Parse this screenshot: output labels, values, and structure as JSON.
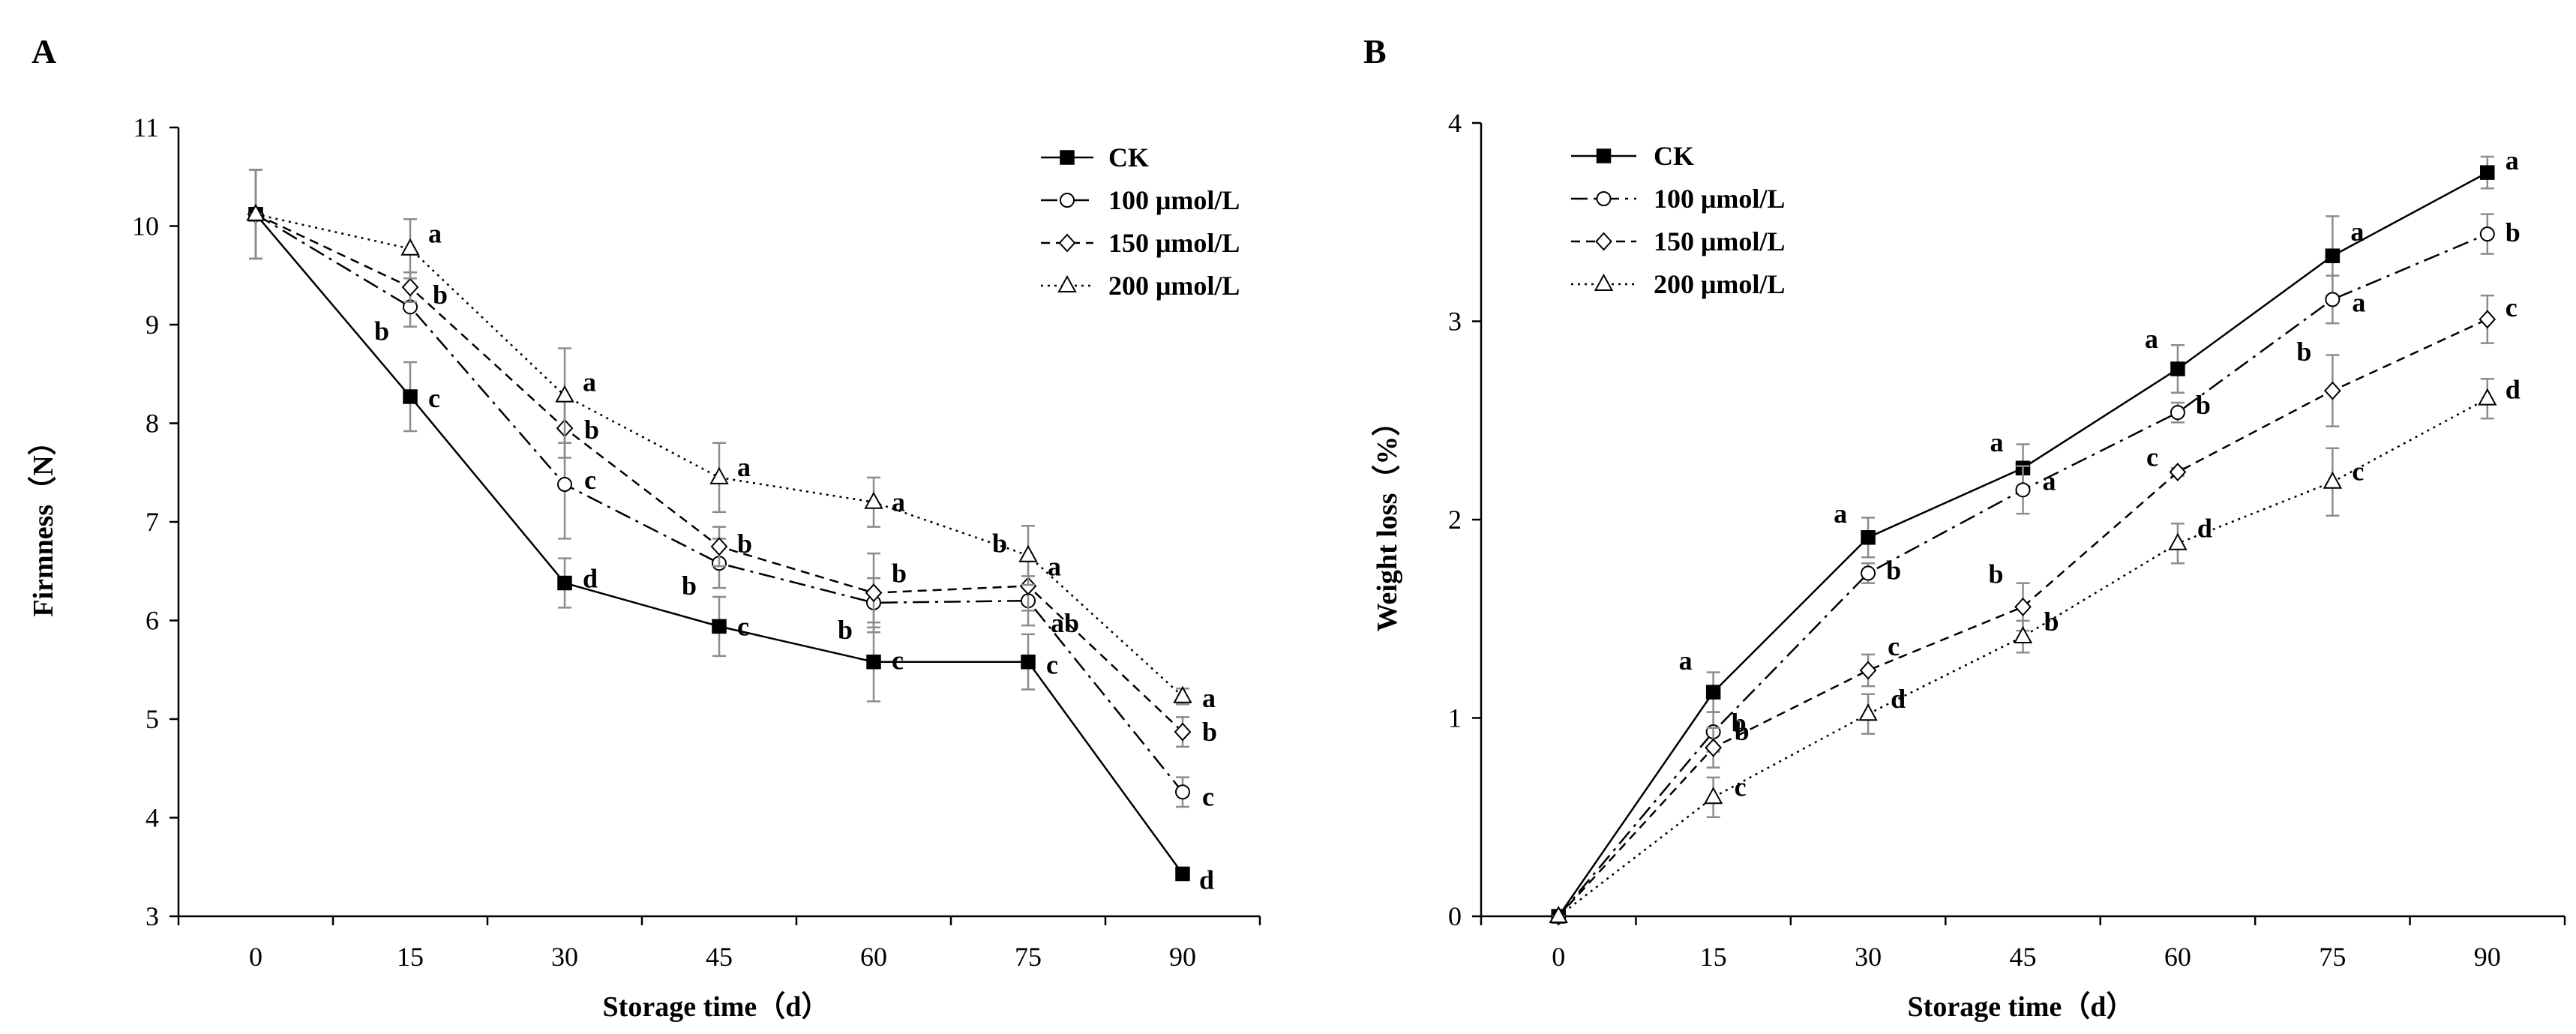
{
  "chart_data": [
    {
      "type": "line",
      "panel": "A",
      "xlabel": "Storage time（d）",
      "ylabel": "Firmness（N）",
      "x": [
        0,
        15,
        30,
        45,
        60,
        75,
        90
      ],
      "xticks": [
        "0",
        "15",
        "30",
        "45",
        "60",
        "75",
        "90"
      ],
      "xlim": [
        -7.5,
        97.5
      ],
      "ylim": [
        3,
        11
      ],
      "yticks": [
        "3",
        "4",
        "5",
        "6",
        "7",
        "8",
        "9",
        "10",
        "11"
      ],
      "legend_position": "top-right",
      "series": [
        {
          "name": "CK",
          "marker": "square",
          "dash": "solid",
          "values": [
            10.12,
            8.27,
            6.38,
            5.94,
            5.58,
            5.58,
            3.43
          ],
          "errors": [
            0.45,
            0.35,
            0.25,
            0.3,
            0.4,
            0.28,
            0.06
          ],
          "letters": [
            "",
            "c",
            "d",
            "c",
            "c",
            "c",
            "d"
          ]
        },
        {
          "name": "100 μmol/L",
          "marker": "circle",
          "dash": "dashdot",
          "values": [
            10.12,
            9.18,
            7.38,
            6.58,
            6.18,
            6.2,
            4.26
          ],
          "errors": [
            0.45,
            0.2,
            0.55,
            0.25,
            0.25,
            0.25,
            0.15
          ],
          "letters": [
            "",
            "b",
            "c",
            "b",
            "b",
            "ab",
            "c"
          ]
        },
        {
          "name": "150 μmol/L",
          "marker": "diamond",
          "dash": "dashed",
          "values": [
            10.12,
            9.38,
            7.95,
            6.75,
            6.28,
            6.35,
            4.87
          ],
          "errors": [
            0.45,
            0.15,
            0.3,
            0.2,
            0.4,
            0.25,
            0.15
          ],
          "letters": [
            "",
            "b",
            "b",
            "b",
            "b",
            "a",
            "b"
          ]
        },
        {
          "name": "200 μmol/L",
          "marker": "triangle",
          "dash": "dotted",
          "values": [
            10.12,
            9.77,
            8.28,
            7.45,
            7.2,
            6.66,
            5.23
          ],
          "errors": [
            0.45,
            0.3,
            0.48,
            0.35,
            0.25,
            0.3,
            0.08
          ],
          "letters": [
            "",
            "a",
            "a",
            "a",
            "a",
            "b",
            "a"
          ]
        }
      ]
    },
    {
      "type": "line",
      "panel": "B",
      "xlabel": "Storage time（d）",
      "ylabel": "Weight loss（%）",
      "x": [
        0,
        15,
        30,
        45,
        60,
        75,
        90
      ],
      "xticks": [
        "0",
        "15",
        "30",
        "45",
        "60",
        "75",
        "90"
      ],
      "xlim": [
        -7.5,
        97.5
      ],
      "ylim": [
        0,
        4
      ],
      "yticks": [
        "0",
        "1",
        "2",
        "3",
        "4"
      ],
      "legend_position": "top-left",
      "series": [
        {
          "name": "CK",
          "marker": "square",
          "dash": "solid",
          "values": [
            0,
            1.13,
            1.91,
            2.26,
            2.76,
            3.33,
            3.75
          ],
          "errors": [
            0,
            0.1,
            0.1,
            0.12,
            0.12,
            0.2,
            0.08
          ],
          "letters": [
            "",
            "a",
            "a",
            "a",
            "a",
            "a",
            "a"
          ]
        },
        {
          "name": "100 μmol/L",
          "marker": "circle",
          "dash": "dashdot",
          "values": [
            0,
            0.93,
            1.73,
            2.15,
            2.54,
            3.11,
            3.44
          ],
          "errors": [
            0,
            0.1,
            0.05,
            0.12,
            0.05,
            0.12,
            0.1
          ],
          "letters": [
            "",
            "b",
            "b",
            "a",
            "b",
            "a",
            "b"
          ]
        },
        {
          "name": "150 μmol/L",
          "marker": "diamond",
          "dash": "dashed",
          "values": [
            0,
            0.85,
            1.24,
            1.56,
            2.24,
            2.65,
            3.01
          ],
          "errors": [
            0,
            0.1,
            0.08,
            0.12,
            0.02,
            0.18,
            0.12
          ],
          "letters": [
            "",
            "b",
            "c",
            "b",
            "c",
            "b",
            "c"
          ]
        },
        {
          "name": "200 μmol/L",
          "marker": "triangle",
          "dash": "dotted",
          "values": [
            0,
            0.6,
            1.02,
            1.41,
            1.88,
            2.19,
            2.61
          ],
          "errors": [
            0,
            0.1,
            0.1,
            0.08,
            0.1,
            0.17,
            0.1
          ],
          "letters": [
            "",
            "c",
            "d",
            "b",
            "d",
            "c",
            "d"
          ]
        }
      ]
    }
  ]
}
